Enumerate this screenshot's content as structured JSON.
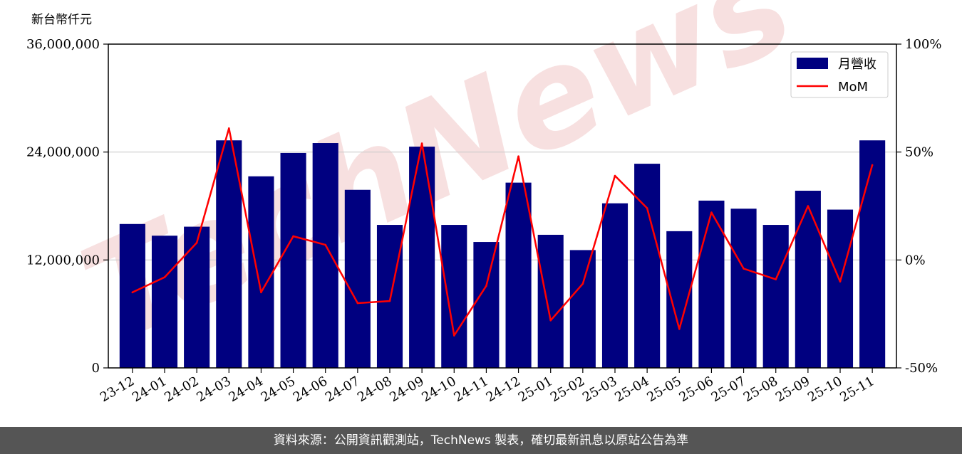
{
  "unit_label": "新台幣仟元",
  "watermark_text": "TechNews",
  "footer_text": "資料來源：公開資訊觀測站，TechNews 製表，確切最新訊息以原站公告為準",
  "colors": {
    "bar": "#000080",
    "line": "#ff0000",
    "grid": "#cccccc",
    "watermark": "#f5d6d6",
    "footer_bg": "#555555"
  },
  "chart_data": {
    "type": "bar",
    "categories": [
      "23-12",
      "24-01",
      "24-02",
      "24-03",
      "24-04",
      "24-05",
      "24-06",
      "24-07",
      "24-08",
      "24-09",
      "24-10",
      "24-11",
      "24-12",
      "25-01",
      "25-02",
      "25-03",
      "25-04",
      "25-05",
      "25-06",
      "25-07",
      "25-08",
      "25-09",
      "25-10",
      "25-11"
    ],
    "series": [
      {
        "name": "月營收",
        "type": "bar",
        "axis": "left",
        "values": [
          16000000,
          14700000,
          15700000,
          25300000,
          21300000,
          23900000,
          25000000,
          19800000,
          15900000,
          24600000,
          15900000,
          14000000,
          20600000,
          14800000,
          13100000,
          18300000,
          22700000,
          15200000,
          18600000,
          17700000,
          15900000,
          19700000,
          17600000,
          25300000
        ]
      },
      {
        "name": "MoM",
        "type": "line",
        "axis": "right",
        "values": [
          -15,
          -8,
          8,
          61,
          -15,
          11,
          7,
          -20,
          -19,
          54,
          -35,
          -12,
          48,
          -28,
          -11,
          39,
          24,
          -32,
          22,
          -4,
          -9,
          25,
          -10,
          44
        ]
      }
    ],
    "y_left": {
      "min": 0,
      "max": 36000000,
      "ticks": [
        0,
        12000000,
        24000000,
        36000000
      ],
      "tick_labels": [
        "0",
        "12,000,000",
        "24,000,000",
        "36,000,000"
      ]
    },
    "y_right": {
      "min": -50,
      "max": 100,
      "ticks": [
        -50,
        0,
        50,
        100
      ],
      "tick_labels": [
        "-50%",
        "0%",
        "50%",
        "100%"
      ]
    },
    "grid": "horizontal",
    "legend_position": "top-right"
  }
}
